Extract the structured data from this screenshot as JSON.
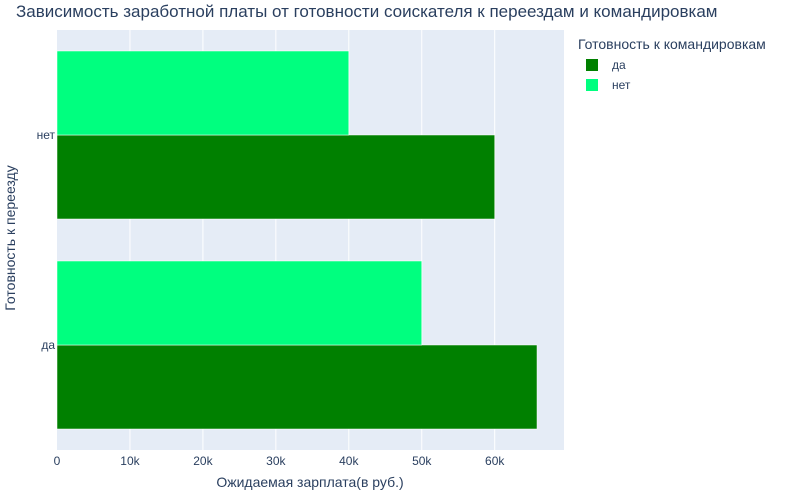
{
  "chart_data": {
    "type": "bar",
    "orientation": "horizontal",
    "title": "Зависимость заработной платы от готовности соискателя к переездам и командировкам",
    "xlabel": "Ожидаемая зарплата(в руб.)",
    "ylabel": "Готовность к переезду",
    "categories": [
      "да",
      "нет"
    ],
    "xlim": [
      0,
      69500
    ],
    "x_ticks": [
      0,
      10000,
      20000,
      30000,
      40000,
      50000,
      60000
    ],
    "x_tick_labels": [
      "0",
      "10k",
      "20k",
      "30k",
      "40k",
      "50k",
      "60k"
    ],
    "legend_title": "Готовность к командировкам",
    "legend_position": "top-right",
    "grid": true,
    "series": [
      {
        "name": "да",
        "color": "#008000",
        "values": [
          65800,
          60000
        ]
      },
      {
        "name": "нет",
        "color": "#00FF7F",
        "values": [
          50000,
          40000
        ]
      }
    ]
  },
  "style": {
    "plot_bg": "#E5ECF6",
    "grid_color": "#ffffff",
    "text_color": "#2a3f5f"
  }
}
